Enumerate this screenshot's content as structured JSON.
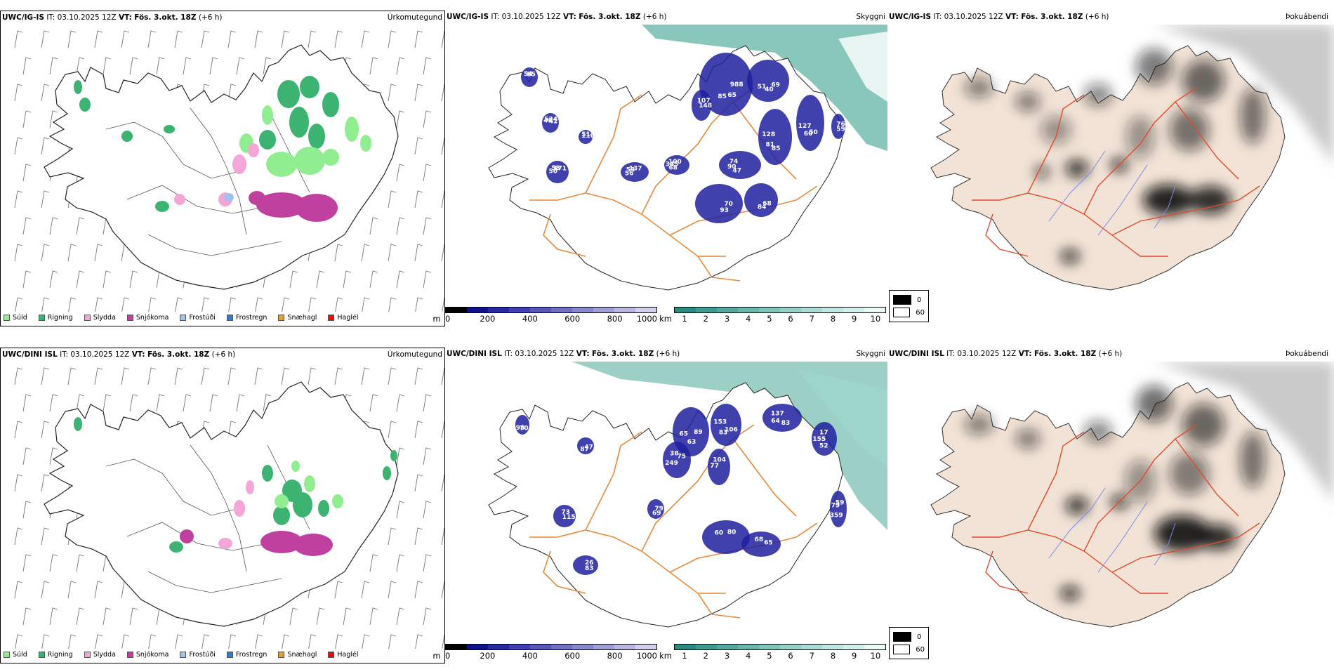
{
  "rows": [
    {
      "precip": {
        "model": "UWC/IG-IS",
        "it": "IT: 03.10.2025 12Z",
        "vt_label": "VT:",
        "vt": "Fös. 3.okt. 18Z",
        "lead": "(+6 h)",
        "title": "Úrkomutegund"
      },
      "vis": {
        "model": "UWC/IG-IS",
        "it": "IT: 03.10.2025 12Z",
        "vt_label": "VT:",
        "vt": "Fös. 3.okt. 18Z",
        "lead": "(+6 h)",
        "title": "Skyggni",
        "labels": [
          "988",
          "69",
          "50",
          "85",
          "47",
          "68",
          "56",
          "50",
          "48",
          "54",
          "51",
          "107",
          "76",
          "70",
          "68",
          "65",
          "40",
          "60",
          "81",
          "90",
          "345",
          "53",
          "58",
          "524",
          "85",
          "110",
          "148",
          "59",
          "93",
          "84",
          "85",
          "51",
          "127",
          "128",
          "74",
          "100",
          "137",
          "171",
          "42"
        ]
      },
      "fog": {
        "model": "UWC/IG-IS",
        "it": "IT: 03.10.2025 12Z",
        "vt_label": "VT:",
        "vt": "Fös. 3.okt. 18Z",
        "lead": "(+6 h)",
        "title": "Þokuábendi"
      }
    },
    {
      "precip": {
        "model": "UWC/DINI ISL",
        "it": "IT: 03.10.2025 12Z",
        "vt_label": "VT:",
        "vt": "Fös. 3.okt. 18Z",
        "lead": "(+6 h)",
        "title": "Úrkomutegund"
      },
      "vis": {
        "model": "UWC/DINI ISL",
        "it": "IT: 03.10.2025 12Z",
        "vt_label": "VT:",
        "vt": "Fös. 3.okt. 18Z",
        "lead": "(+6 h)",
        "title": "Skyggni",
        "labels": [
          "89",
          "106",
          "83",
          "52",
          "359",
          "249",
          "77",
          "60",
          "68",
          "73",
          "26",
          "79",
          "47",
          "70",
          "63",
          "83",
          "64",
          "155",
          "79",
          "38",
          "104",
          "80",
          "65",
          "115",
          "83",
          "69",
          "87",
          "98",
          "65",
          "153",
          "137",
          "17",
          "59",
          "75"
        ]
      },
      "fog": {
        "model": "UWC/DINI ISL",
        "it": "IT: 03.10.2025 12Z",
        "vt_label": "VT:",
        "vt": "Fös. 3.okt. 18Z",
        "lead": "(+6 h)",
        "title": "Þokuábendi"
      }
    }
  ],
  "precip_legend": [
    {
      "label": "Súld",
      "color": "#90ee90"
    },
    {
      "label": "Rigning",
      "color": "#3cb371"
    },
    {
      "label": "Slydda",
      "color": "#f4a6d7"
    },
    {
      "label": "Snjókoma",
      "color": "#c040a0"
    },
    {
      "label": "Frostúði",
      "color": "#9ec3f0"
    },
    {
      "label": "Frostregn",
      "color": "#3c78c8"
    },
    {
      "label": "Snæhagl",
      "color": "#f0a020"
    },
    {
      "label": "Haglél",
      "color": "#e01010"
    }
  ],
  "cloud_base_legend": {
    "unit": "m",
    "ticks": [
      "0",
      "200",
      "400",
      "600",
      "800",
      "1000"
    ],
    "colors": [
      "#000000",
      "#10108a",
      "#2828a0",
      "#4040b0",
      "#5858b8",
      "#7070c0",
      "#8888c8",
      "#a0a0d4",
      "#b8b8de",
      "#d0d0ea"
    ]
  },
  "visibility_legend": {
    "unit": "km",
    "ticks": [
      "1",
      "2",
      "3",
      "4",
      "5",
      "6",
      "7",
      "8",
      "9",
      "10"
    ],
    "colors": [
      "#2a8a80",
      "#3f9a90",
      "#55a89f",
      "#6ab6ad",
      "#80c3bb",
      "#96cfc8",
      "#abdad4",
      "#c1e5e0",
      "#d6efeb",
      "#ebf8f6"
    ]
  },
  "fog_legend": [
    {
      "label": "0",
      "color": "#000000"
    },
    {
      "label": "60",
      "color": "#ffffff"
    }
  ],
  "colors": {
    "land_fog": "#f2e3d6",
    "road_orange": "#e88a3c",
    "road_red": "#e04a2a",
    "river_blue": "#7a8ae8",
    "sea_teal": "#4aa898",
    "low_cloud": "#2020a0"
  }
}
